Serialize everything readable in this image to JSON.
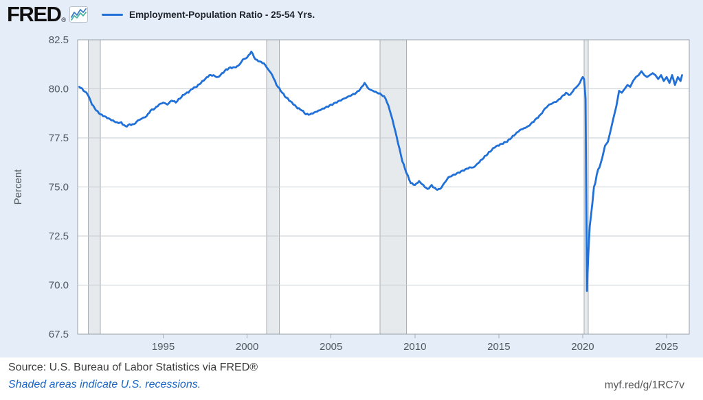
{
  "header": {
    "logo_text": "FRED",
    "logo_registered": "®",
    "legend": {
      "label": "Employment-Population Ratio - 25-54 Yrs."
    }
  },
  "footer": {
    "source": "Source: U.S. Bureau of Labor Statistics via FRED®",
    "recession_note": "Shaded areas indicate U.S. recessions.",
    "short_url": "myf.red/g/1RC7v"
  },
  "colors": {
    "page_background": "#e4edf8",
    "plot_background": "#ffffff",
    "series_line": "#2070d8",
    "gridline": "#c6cbd0",
    "plot_border": "#98a1a9",
    "recession_fill": "#e6eaed",
    "recession_edge": "#a9afb4",
    "tick_mark": "#9fafbe",
    "legend_swatch": "#2070d8",
    "link_blue": "#1b66c4",
    "logo_sparkline_blue": "#3b7cc4",
    "logo_sparkline_teal": "#45b39d"
  },
  "chart_data": {
    "type": "line",
    "title": "Employment-Population Ratio - 25-54 Yrs.",
    "xlabel": "",
    "ylabel": "Percent",
    "legend_position": "top-left",
    "grid": "horizontal-only",
    "xlim": [
      1989.9,
      2026.35
    ],
    "ylim": [
      67.5,
      82.5
    ],
    "x_ticks": [
      "1995",
      "2000",
      "2005",
      "2010",
      "2015",
      "2020",
      "2025"
    ],
    "y_ticks": [
      "82.5",
      "80.0",
      "77.5",
      "75.0",
      "72.5",
      "70.0",
      "67.5"
    ],
    "recessions": [
      [
        1990.54,
        1991.25
      ],
      [
        2001.17,
        2001.92
      ],
      [
        2007.92,
        2009.5
      ],
      [
        2020.08,
        2020.33
      ]
    ],
    "series": [
      {
        "name": "Employment-Population Ratio - 25-54 Yrs.",
        "units": "Percent",
        "points": [
          [
            1990.0,
            80.1
          ],
          [
            1990.25,
            79.9
          ],
          [
            1990.5,
            79.7
          ],
          [
            1990.75,
            79.2
          ],
          [
            1991.0,
            78.9
          ],
          [
            1991.25,
            78.7
          ],
          [
            1991.5,
            78.6
          ],
          [
            1991.75,
            78.5
          ],
          [
            1992.0,
            78.4
          ],
          [
            1992.25,
            78.3
          ],
          [
            1992.5,
            78.3
          ],
          [
            1992.75,
            78.1
          ],
          [
            1993.0,
            78.2
          ],
          [
            1993.25,
            78.2
          ],
          [
            1993.5,
            78.4
          ],
          [
            1993.75,
            78.5
          ],
          [
            1994.0,
            78.6
          ],
          [
            1994.25,
            78.9
          ],
          [
            1994.5,
            79.0
          ],
          [
            1994.75,
            79.2
          ],
          [
            1995.0,
            79.3
          ],
          [
            1995.25,
            79.2
          ],
          [
            1995.5,
            79.4
          ],
          [
            1995.75,
            79.3
          ],
          [
            1996.0,
            79.5
          ],
          [
            1996.25,
            79.7
          ],
          [
            1996.5,
            79.8
          ],
          [
            1996.75,
            80.0
          ],
          [
            1997.0,
            80.1
          ],
          [
            1997.25,
            80.3
          ],
          [
            1997.5,
            80.5
          ],
          [
            1997.75,
            80.7
          ],
          [
            1998.0,
            80.7
          ],
          [
            1998.25,
            80.6
          ],
          [
            1998.5,
            80.8
          ],
          [
            1998.75,
            81.0
          ],
          [
            1999.0,
            81.1
          ],
          [
            1999.25,
            81.1
          ],
          [
            1999.5,
            81.2
          ],
          [
            1999.75,
            81.5
          ],
          [
            2000.0,
            81.6
          ],
          [
            2000.25,
            81.9
          ],
          [
            2000.5,
            81.5
          ],
          [
            2000.75,
            81.4
          ],
          [
            2001.0,
            81.3
          ],
          [
            2001.25,
            81.0
          ],
          [
            2001.5,
            80.7
          ],
          [
            2001.75,
            80.2
          ],
          [
            2002.0,
            79.9
          ],
          [
            2002.25,
            79.6
          ],
          [
            2002.5,
            79.4
          ],
          [
            2002.75,
            79.2
          ],
          [
            2003.0,
            79.0
          ],
          [
            2003.25,
            78.9
          ],
          [
            2003.5,
            78.7
          ],
          [
            2003.75,
            78.7
          ],
          [
            2004.0,
            78.8
          ],
          [
            2004.25,
            78.9
          ],
          [
            2004.5,
            79.0
          ],
          [
            2004.75,
            79.1
          ],
          [
            2005.0,
            79.2
          ],
          [
            2005.25,
            79.3
          ],
          [
            2005.5,
            79.4
          ],
          [
            2005.75,
            79.5
          ],
          [
            2006.0,
            79.6
          ],
          [
            2006.25,
            79.7
          ],
          [
            2006.5,
            79.8
          ],
          [
            2006.75,
            80.0
          ],
          [
            2007.0,
            80.3
          ],
          [
            2007.25,
            80.0
          ],
          [
            2007.5,
            79.9
          ],
          [
            2007.75,
            79.8
          ],
          [
            2008.0,
            79.7
          ],
          [
            2008.25,
            79.5
          ],
          [
            2008.5,
            78.9
          ],
          [
            2008.75,
            78.1
          ],
          [
            2009.0,
            77.2
          ],
          [
            2009.25,
            76.3
          ],
          [
            2009.5,
            75.7
          ],
          [
            2009.75,
            75.2
          ],
          [
            2010.0,
            75.1
          ],
          [
            2010.25,
            75.3
          ],
          [
            2010.5,
            75.1
          ],
          [
            2010.75,
            74.9
          ],
          [
            2011.0,
            75.1
          ],
          [
            2011.25,
            74.9
          ],
          [
            2011.5,
            74.9
          ],
          [
            2011.75,
            75.2
          ],
          [
            2012.0,
            75.5
          ],
          [
            2012.25,
            75.6
          ],
          [
            2012.5,
            75.7
          ],
          [
            2012.75,
            75.8
          ],
          [
            2013.0,
            75.9
          ],
          [
            2013.25,
            76.0
          ],
          [
            2013.5,
            76.0
          ],
          [
            2013.75,
            76.2
          ],
          [
            2014.0,
            76.4
          ],
          [
            2014.25,
            76.6
          ],
          [
            2014.5,
            76.8
          ],
          [
            2014.75,
            77.0
          ],
          [
            2015.0,
            77.1
          ],
          [
            2015.25,
            77.2
          ],
          [
            2015.5,
            77.3
          ],
          [
            2015.75,
            77.5
          ],
          [
            2016.0,
            77.7
          ],
          [
            2016.25,
            77.9
          ],
          [
            2016.5,
            78.0
          ],
          [
            2016.75,
            78.1
          ],
          [
            2017.0,
            78.3
          ],
          [
            2017.25,
            78.5
          ],
          [
            2017.5,
            78.7
          ],
          [
            2017.75,
            79.0
          ],
          [
            2018.0,
            79.2
          ],
          [
            2018.25,
            79.3
          ],
          [
            2018.5,
            79.4
          ],
          [
            2018.75,
            79.6
          ],
          [
            2019.0,
            79.8
          ],
          [
            2019.25,
            79.7
          ],
          [
            2019.5,
            80.0
          ],
          [
            2019.75,
            80.2
          ],
          [
            2020.0,
            80.6
          ],
          [
            2020.08,
            80.5
          ],
          [
            2020.17,
            79.5
          ],
          [
            2020.25,
            69.7
          ],
          [
            2020.33,
            71.5
          ],
          [
            2020.42,
            73.0
          ],
          [
            2020.5,
            73.6
          ],
          [
            2020.58,
            74.2
          ],
          [
            2020.67,
            75.0
          ],
          [
            2020.75,
            75.2
          ],
          [
            2020.83,
            75.6
          ],
          [
            2020.92,
            75.9
          ],
          [
            2021.0,
            76.0
          ],
          [
            2021.17,
            76.5
          ],
          [
            2021.33,
            77.1
          ],
          [
            2021.5,
            77.3
          ],
          [
            2021.67,
            77.9
          ],
          [
            2021.83,
            78.5
          ],
          [
            2022.0,
            79.1
          ],
          [
            2022.17,
            79.9
          ],
          [
            2022.33,
            79.8
          ],
          [
            2022.5,
            80.0
          ],
          [
            2022.67,
            80.2
          ],
          [
            2022.83,
            80.1
          ],
          [
            2023.0,
            80.4
          ],
          [
            2023.17,
            80.6
          ],
          [
            2023.33,
            80.7
          ],
          [
            2023.5,
            80.9
          ],
          [
            2023.67,
            80.7
          ],
          [
            2023.83,
            80.6
          ],
          [
            2024.0,
            80.7
          ],
          [
            2024.17,
            80.8
          ],
          [
            2024.33,
            80.7
          ],
          [
            2024.5,
            80.5
          ],
          [
            2024.67,
            80.7
          ],
          [
            2024.83,
            80.4
          ],
          [
            2025.0,
            80.6
          ],
          [
            2025.17,
            80.3
          ],
          [
            2025.33,
            80.7
          ],
          [
            2025.5,
            80.2
          ],
          [
            2025.67,
            80.6
          ],
          [
            2025.83,
            80.4
          ],
          [
            2025.92,
            80.7
          ]
        ]
      }
    ]
  }
}
